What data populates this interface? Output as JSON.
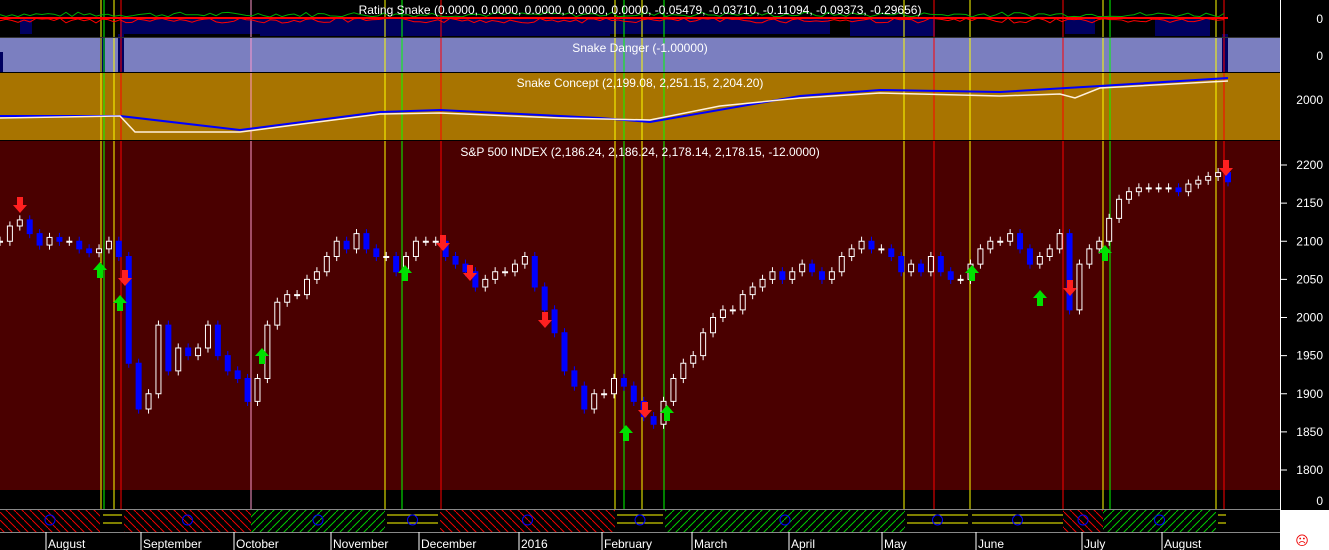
{
  "panels": {
    "rating": {
      "title": "Rating Snake (0.0000, 0.0000, 0.0000, 0.0000, 0.0000, -0.05479, -0.03710, -0.11094, -0.09373, -0.29656)",
      "axis_label": "0"
    },
    "danger": {
      "title": "Snake Danger (-1.00000)",
      "axis_label": "0"
    },
    "concept": {
      "title": "Snake Concept (2,199.08, 2,251.15, 2,204.20)",
      "axis_label": "2000"
    },
    "main": {
      "title": "S&P 500 INDEX (2,186.24, 2,186.24, 2,178.14, 2,178.15, -12.0000)",
      "bottom_axis_label": "0"
    }
  },
  "colors": {
    "rating_bg": "#000000",
    "danger_bg": "#7b7fc0",
    "danger_block": "#000060",
    "concept_bg": "#a87400",
    "main_bg": "#4a0000",
    "bull_candle": "#ffffff",
    "bear_candle": "#0000ff",
    "buy_arrow": "#00e000",
    "sell_arrow": "#ff2020"
  },
  "months": [
    "August",
    "September",
    "October",
    "November",
    "December",
    "2016",
    "February",
    "March",
    "April",
    "May",
    "June",
    "July",
    "August"
  ],
  "status_icon": "sad-face-icon",
  "chart_data": {
    "type": "candlestick",
    "title": "S&P 500 INDEX (2,186.24, 2,186.24, 2,178.14, 2,178.15, -12.0000)",
    "y_ticks": [
      1800,
      1850,
      1900,
      1950,
      2000,
      2050,
      2100,
      2150,
      2200
    ],
    "ylim": [
      1770,
      2230
    ],
    "closes": [
      2100,
      2120,
      2128,
      2110,
      2095,
      2105,
      2100,
      2100,
      2090,
      2085,
      2090,
      2100,
      2080,
      1940,
      1880,
      1900,
      1990,
      1930,
      1960,
      1950,
      1960,
      1990,
      1950,
      1930,
      1920,
      1890,
      1920,
      1990,
      2020,
      2030,
      2030,
      2050,
      2060,
      2080,
      2100,
      2090,
      2110,
      2090,
      2080,
      2080,
      2060,
      2080,
      2100,
      2100,
      2100,
      2080,
      2070,
      2060,
      2040,
      2050,
      2060,
      2060,
      2070,
      2080,
      2040,
      2010,
      1980,
      1930,
      1910,
      1880,
      1900,
      1900,
      1920,
      1910,
      1890,
      1870,
      1860,
      1890,
      1920,
      1940,
      1950,
      1980,
      2000,
      2010,
      2010,
      2030,
      2040,
      2050,
      2060,
      2050,
      2060,
      2070,
      2060,
      2050,
      2060,
      2080,
      2090,
      2100,
      2090,
      2090,
      2080,
      2060,
      2070,
      2060,
      2080,
      2060,
      2050,
      2050,
      2070,
      2090,
      2100,
      2100,
      2110,
      2090,
      2070,
      2080,
      2090,
      2110,
      2010,
      2070,
      2090,
      2100,
      2130,
      2155,
      2165,
      2170,
      2170,
      2170,
      2170,
      2165,
      2175,
      2180,
      2185,
      2190,
      2178
    ]
  }
}
